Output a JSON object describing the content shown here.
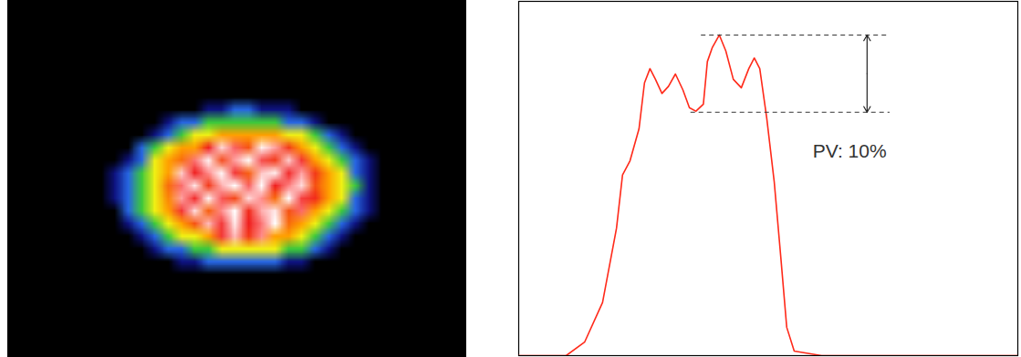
{
  "chart_data": [
    {
      "type": "heatmap",
      "xlim": [
        0,
        100
      ],
      "ylim": [
        0,
        100
      ],
      "tick_labels": false,
      "zlim": [
        0,
        100
      ],
      "extent": {
        "x": [
          16,
          86
        ],
        "y": [
          82,
          18
        ]
      },
      "cells": [
        [
          0,
          0,
          0,
          0,
          0,
          0,
          0,
          0,
          0,
          0,
          0,
          0,
          0,
          0,
          0,
          0,
          0,
          0,
          0,
          0,
          0,
          0,
          0,
          0
        ],
        [
          0,
          0,
          0,
          0,
          0,
          0,
          0,
          0,
          0,
          0,
          0,
          0,
          0,
          0,
          0,
          0,
          0,
          0,
          0,
          0,
          0,
          0,
          0,
          0
        ],
        [
          0,
          0,
          0,
          0,
          0,
          0,
          0,
          0,
          0,
          0,
          0,
          0,
          0,
          0,
          0,
          0,
          0,
          0,
          0,
          0,
          0,
          0,
          0,
          0
        ],
        [
          0,
          0,
          0,
          0,
          0,
          0,
          0,
          0,
          0,
          12,
          12,
          28,
          28,
          12,
          12,
          12,
          0,
          0,
          0,
          0,
          0,
          0,
          0,
          0
        ],
        [
          0,
          0,
          0,
          0,
          0,
          0,
          12,
          28,
          28,
          45,
          45,
          45,
          45,
          45,
          45,
          28,
          28,
          12,
          0,
          0,
          0,
          0,
          0,
          0
        ],
        [
          0,
          0,
          0,
          0,
          0,
          12,
          28,
          45,
          58,
          58,
          68,
          68,
          68,
          68,
          68,
          58,
          58,
          45,
          28,
          12,
          0,
          0,
          0,
          0
        ],
        [
          0,
          0,
          0,
          0,
          28,
          45,
          58,
          68,
          68,
          78,
          95,
          84,
          74,
          97,
          90,
          76,
          68,
          58,
          45,
          28,
          12,
          0,
          0,
          0
        ],
        [
          0,
          0,
          0,
          12,
          28,
          58,
          68,
          72,
          86,
          97,
          75,
          90,
          98,
          82,
          76,
          94,
          80,
          68,
          58,
          45,
          28,
          12,
          0,
          0
        ],
        [
          0,
          0,
          12,
          28,
          45,
          58,
          68,
          94,
          78,
          88,
          99,
          80,
          73,
          93,
          97,
          79,
          90,
          76,
          68,
          58,
          28,
          12,
          0,
          0
        ],
        [
          0,
          0,
          12,
          28,
          45,
          58,
          72,
          85,
          96,
          76,
          91,
          98,
          84,
          100,
          78,
          87,
          95,
          74,
          68,
          58,
          45,
          12,
          0,
          0
        ],
        [
          0,
          0,
          12,
          28,
          45,
          58,
          70,
          90,
          79,
          97,
          83,
          75,
          95,
          88,
          72,
          99,
          81,
          77,
          68,
          58,
          28,
          12,
          0,
          0
        ],
        [
          0,
          0,
          0,
          28,
          45,
          58,
          68,
          80,
          95,
          73,
          88,
          100,
          77,
          91,
          96,
          74,
          85,
          68,
          58,
          45,
          28,
          12,
          0,
          0
        ],
        [
          0,
          0,
          0,
          12,
          28,
          45,
          58,
          68,
          74,
          92,
          80,
          96,
          78,
          86,
          99,
          72,
          68,
          58,
          45,
          28,
          12,
          0,
          0,
          0
        ],
        [
          0,
          0,
          0,
          0,
          12,
          28,
          45,
          58,
          58,
          68,
          80,
          92,
          76,
          88,
          68,
          68,
          58,
          45,
          28,
          12,
          0,
          0,
          0,
          0
        ],
        [
          0,
          0,
          0,
          0,
          0,
          12,
          28,
          28,
          45,
          45,
          58,
          58,
          58,
          58,
          58,
          45,
          45,
          28,
          12,
          0,
          0,
          0,
          0,
          0
        ],
        [
          0,
          0,
          0,
          0,
          0,
          0,
          0,
          12,
          12,
          28,
          28,
          28,
          28,
          28,
          28,
          12,
          12,
          0,
          0,
          0,
          0,
          0,
          0,
          0
        ],
        [
          0,
          0,
          0,
          0,
          0,
          0,
          0,
          0,
          0,
          0,
          0,
          0,
          0,
          0,
          0,
          0,
          0,
          0,
          0,
          0,
          0,
          0,
          0,
          0
        ],
        [
          0,
          0,
          0,
          0,
          0,
          0,
          0,
          0,
          0,
          0,
          0,
          0,
          0,
          0,
          0,
          0,
          0,
          0,
          0,
          0,
          0,
          0,
          0,
          0
        ]
      ]
    },
    {
      "type": "line",
      "xlim": [
        0,
        100
      ],
      "ylim": [
        0,
        100
      ],
      "tick_labels": false,
      "color": "#ff2a1a",
      "x": [
        0,
        9.5,
        13.2,
        16.8,
        19.6,
        20.8,
        22.3,
        24.1,
        25.2,
        26.3,
        27.4,
        28.7,
        30,
        31.4,
        32.9,
        34.2,
        35.5,
        37,
        37.8,
        38.8,
        40.2,
        41.5,
        43,
        44.6,
        46.1,
        47.2,
        48.3,
        49.7,
        51.2,
        52.5,
        53.7,
        55.2,
        60.7,
        100
      ],
      "values": [
        0,
        0,
        3.8,
        15,
        36,
        51,
        55,
        64,
        77,
        81,
        78,
        74,
        76,
        79.5,
        75,
        70,
        69,
        71,
        83,
        87,
        90.5,
        86,
        78,
        75.6,
        81,
        84,
        81,
        67,
        49,
        28,
        8,
        1.3,
        0,
        0
      ],
      "reference_lines": [
        {
          "y": 90.5,
          "x1": 36.6,
          "x2": 74.4
        },
        {
          "y": 68.7,
          "x1": 34.5,
          "x2": 74.4
        }
      ],
      "arrow": {
        "x": 69.8,
        "y1": 68.7,
        "y2": 90.5
      },
      "annotations": [
        {
          "text": "PV: 10%",
          "x": 58.9,
          "y": 57.7
        }
      ]
    }
  ]
}
